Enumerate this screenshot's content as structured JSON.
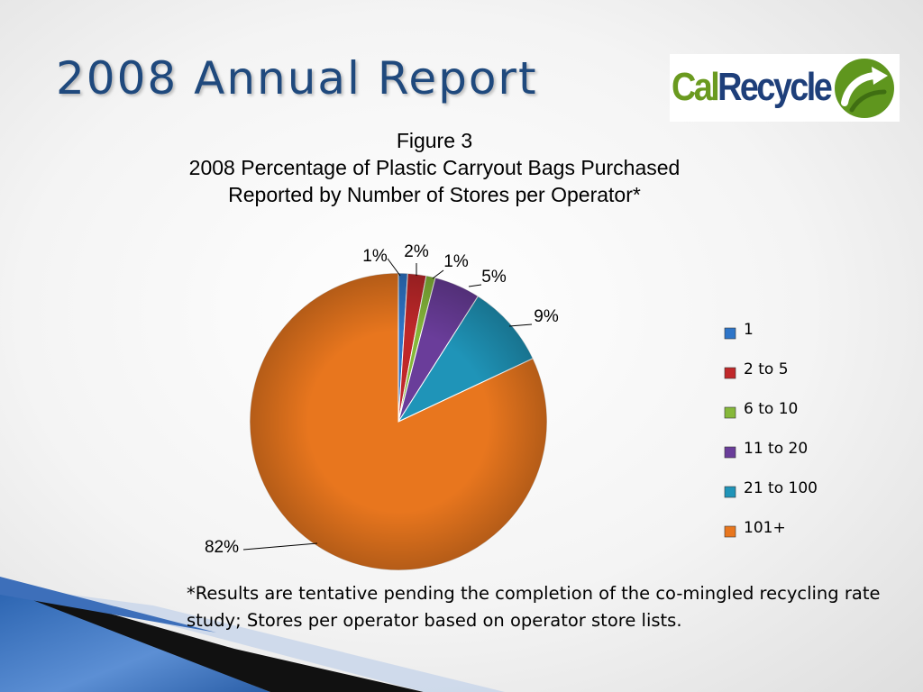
{
  "slide": {
    "title": "2008 Annual Report",
    "footnote": "*Results are tentative pending the completion of the co-mingled recycling rate study; Stores per operator based on operator store lists."
  },
  "logo": {
    "part1": "Cal",
    "part2": "Recycle",
    "icon": "recycle-arrow-icon"
  },
  "chart_data": {
    "type": "pie",
    "title_lines": [
      "Figure 3",
      "2008 Percentage of Plastic Carryout Bags Purchased",
      "Reported by Number of Stores per Operator*"
    ],
    "categories": [
      "1",
      "2 to 5",
      "6 to 10",
      "11 to 20",
      "21 to 100",
      "101+"
    ],
    "values": [
      1,
      2,
      1,
      5,
      9,
      82
    ],
    "labels": [
      "1%",
      "2%",
      "1%",
      "5%",
      "9%",
      "82%"
    ],
    "colors": [
      "#2e75c8",
      "#c0282a",
      "#86b83a",
      "#6a3d9a",
      "#1f94b8",
      "#e8761e"
    ],
    "legend_position": "right"
  }
}
